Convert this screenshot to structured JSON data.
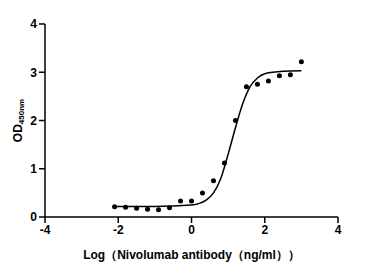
{
  "chart_data": {
    "type": "scatter",
    "x_label": "Log（Nivolumab antibody（ng/ml））",
    "y_label": "OD450nm",
    "xlim": [
      -4,
      4
    ],
    "xticks": [
      -4,
      -2,
      0,
      2,
      4
    ],
    "ylim": [
      0,
      4
    ],
    "yticks": [
      0,
      1,
      2,
      3,
      4
    ],
    "grid": false,
    "series": [
      {
        "type": "scatter",
        "color": "#000000",
        "marker": "circle",
        "x": [
          -2.1,
          -1.8,
          -1.5,
          -1.2,
          -0.9,
          -0.6,
          -0.3,
          0.0,
          0.3,
          0.6,
          0.9,
          1.2,
          1.5,
          1.8,
          2.1,
          2.4,
          2.7,
          3.0
        ],
        "values": [
          0.21,
          0.2,
          0.18,
          0.16,
          0.15,
          0.19,
          0.33,
          0.33,
          0.5,
          0.75,
          1.12,
          2.0,
          2.7,
          2.75,
          2.82,
          2.93,
          2.95,
          3.22
        ]
      },
      {
        "type": "line",
        "color": "#000000",
        "line_style": "solid",
        "x": [
          -2.1,
          -1.0,
          0.0,
          0.4,
          0.6,
          0.8,
          1.0,
          1.2,
          1.4,
          1.6,
          1.8,
          2.0,
          2.5,
          3.0
        ],
        "values": [
          0.22,
          0.22,
          0.25,
          0.35,
          0.5,
          0.8,
          1.3,
          1.85,
          2.35,
          2.7,
          2.88,
          2.97,
          3.02,
          3.03
        ]
      }
    ]
  }
}
